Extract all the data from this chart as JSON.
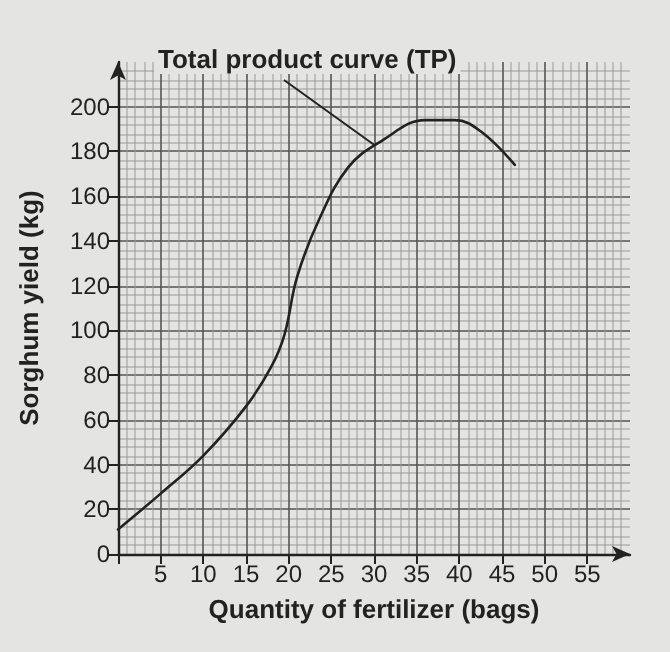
{
  "chart_data": {
    "type": "line",
    "xlabel": "Quantity of fertilizer (bags)",
    "ylabel": "Sorghum yield (kg)",
    "annotations": [
      {
        "text": "Total product curve (TP)",
        "x": 30,
        "y": 183
      }
    ],
    "x": [
      0,
      5,
      10,
      15,
      18,
      19.5,
      21,
      23.5,
      27,
      31,
      36,
      39.5,
      42.5,
      46.5
    ],
    "series": [
      {
        "color": "#222222",
        "values": [
          11,
          27,
          44,
          66,
          84,
          98,
          124,
          149,
          173,
          185,
          194,
          194,
          189,
          174
        ]
      }
    ],
    "xlim": [
      0,
      60
    ],
    "ylim": [
      0,
      220
    ],
    "xticks": [
      {
        "value": 0,
        "label": null
      },
      5,
      10,
      15,
      20,
      25,
      30,
      35,
      40,
      45,
      50,
      55
    ],
    "yticks": [
      0,
      20,
      40,
      60,
      80,
      100,
      120,
      140,
      160,
      180,
      200
    ],
    "grid": true,
    "marker": "none",
    "line_style": "solid"
  }
}
